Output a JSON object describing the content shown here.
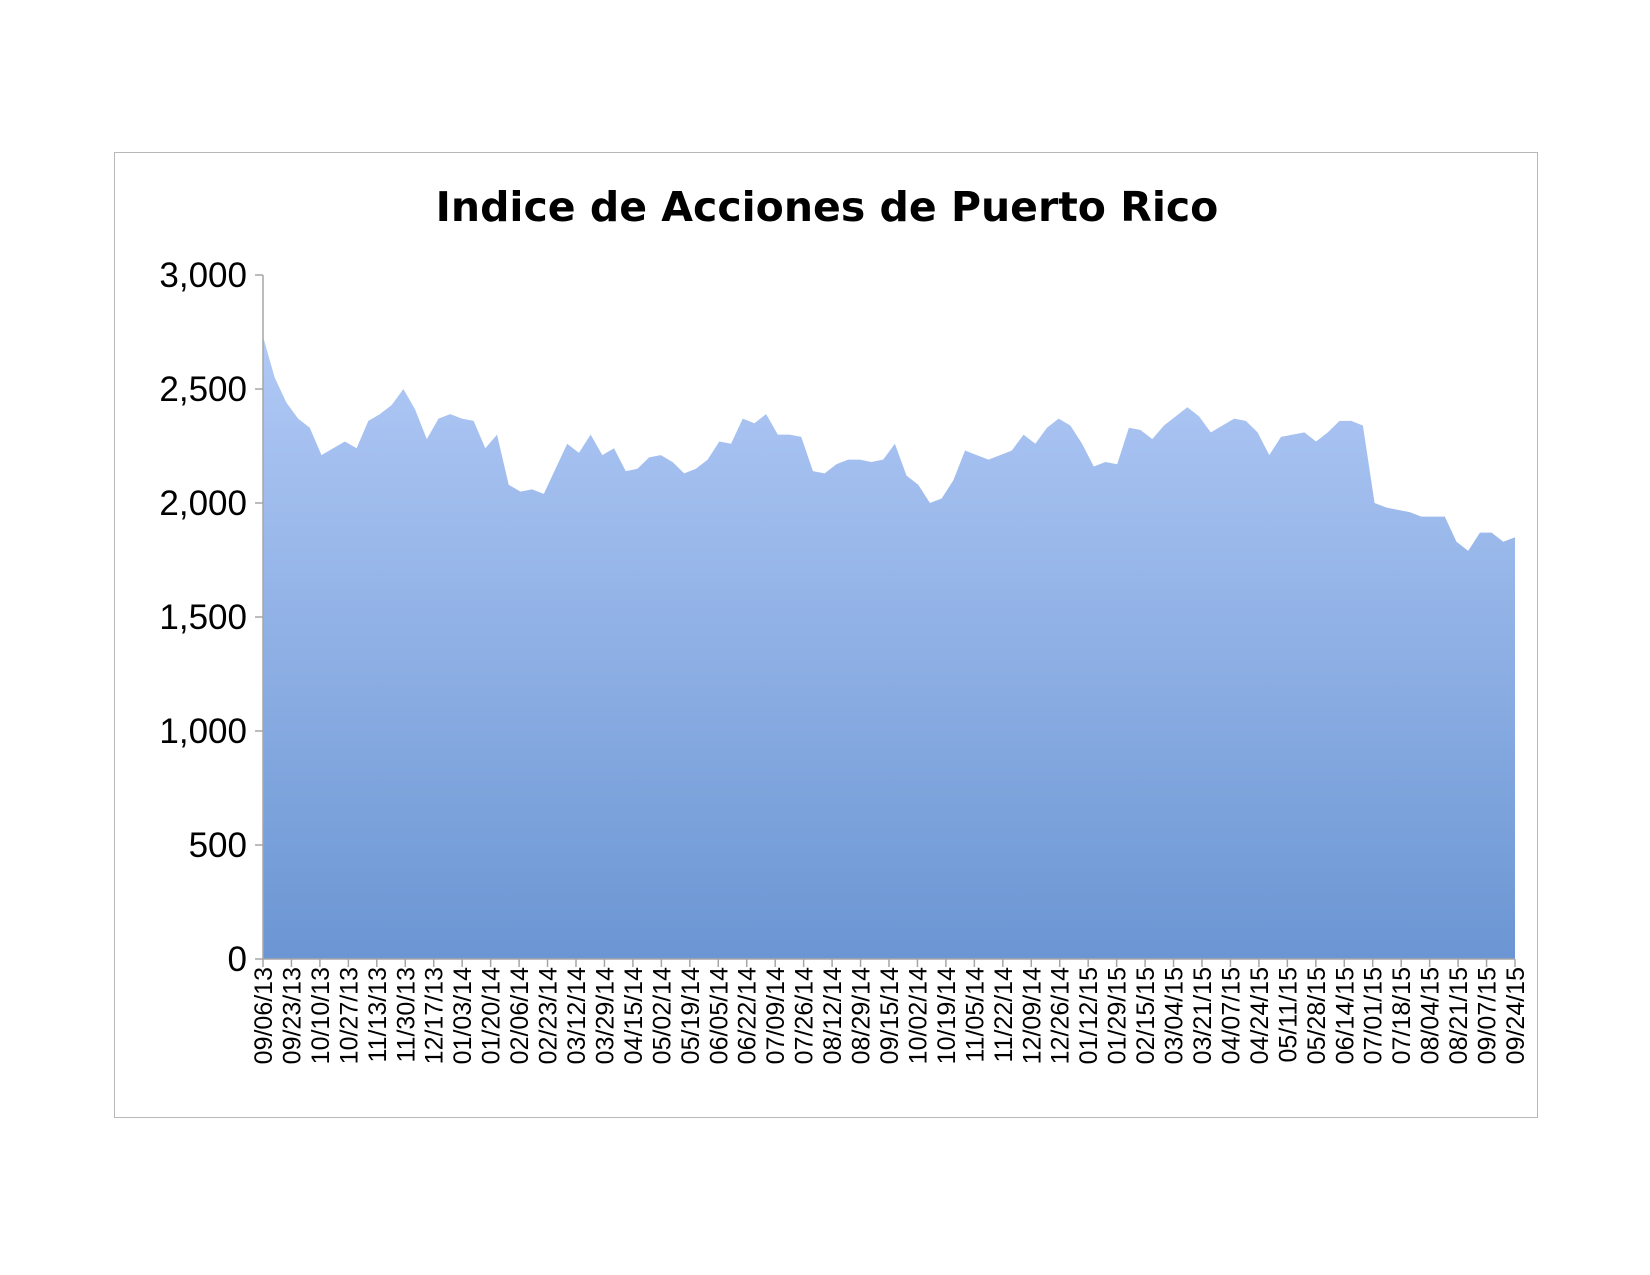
{
  "chart_data": {
    "type": "area",
    "title": "Indice de Acciones de Puerto Rico",
    "xlabel": "",
    "ylabel": "",
    "ylim": [
      0,
      3000
    ],
    "yticks": [
      "0",
      "500",
      "1,000",
      "1,500",
      "2,000",
      "2,500",
      "3,000"
    ],
    "ytick_values": [
      0,
      500,
      1000,
      1500,
      2000,
      2500,
      3000
    ],
    "xtick_labels": [
      "09/06/13",
      "09/23/13",
      "10/10/13",
      "10/27/13",
      "11/13/13",
      "11/30/13",
      "12/17/13",
      "01/03/14",
      "01/20/14",
      "02/06/14",
      "02/23/14",
      "03/12/14",
      "03/29/14",
      "04/15/14",
      "05/02/14",
      "05/19/14",
      "06/05/14",
      "06/22/14",
      "07/09/14",
      "07/26/14",
      "08/12/14",
      "08/29/14",
      "09/15/14",
      "10/02/14",
      "10/19/14",
      "11/05/14",
      "11/22/14",
      "12/09/14",
      "12/26/14",
      "01/12/15",
      "01/29/15",
      "02/15/15",
      "03/04/15",
      "03/21/15",
      "04/07/15",
      "04/24/15",
      "05/11/15",
      "05/28/15",
      "06/14/15",
      "07/01/15",
      "07/18/15",
      "08/04/15",
      "08/21/15",
      "09/07/15",
      "09/24/15"
    ],
    "grid": false,
    "legend": "none",
    "colors": {
      "fill_top": "#b1c9f6",
      "fill_bottom": "#6b96d3",
      "axis": "#a6a6a6"
    },
    "series": [
      {
        "values": [
          2730,
          2550,
          2440,
          2370,
          2330,
          2210,
          2240,
          2270,
          2240,
          2360,
          2390,
          2430,
          2500,
          2410,
          2280,
          2370,
          2390,
          2370,
          2360,
          2240,
          2300,
          2080,
          2050,
          2060,
          2040,
          2150,
          2260,
          2220,
          2300,
          2210,
          2240,
          2140,
          2150,
          2200,
          2210,
          2180,
          2130,
          2150,
          2190,
          2270,
          2260,
          2370,
          2350,
          2390,
          2300,
          2300,
          2290,
          2140,
          2130,
          2170,
          2190,
          2190,
          2180,
          2190,
          2260,
          2120,
          2080,
          2000,
          2020,
          2100,
          2230,
          2210,
          2190,
          2210,
          2230,
          2300,
          2260,
          2330,
          2370,
          2340,
          2260,
          2160,
          2180,
          2170,
          2330,
          2320,
          2280,
          2340,
          2380,
          2420,
          2380,
          2310,
          2340,
          2370,
          2360,
          2310,
          2210,
          2290,
          2300,
          2310,
          2270,
          2310,
          2360,
          2360,
          2340,
          2000,
          1980,
          1970,
          1960,
          1940,
          1940,
          1940,
          1830,
          1790,
          1870,
          1870,
          1830,
          1850
        ]
      }
    ]
  }
}
